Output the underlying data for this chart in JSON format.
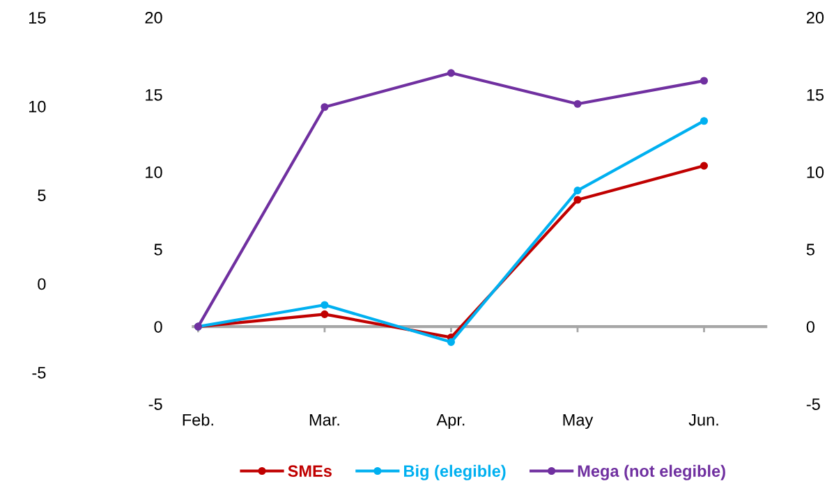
{
  "chart_data": {
    "type": "line",
    "categories": [
      "Feb.",
      "Mar.",
      "Apr.",
      "May",
      "Jun."
    ],
    "series": [
      {
        "name": "SMEs",
        "color": "#c00000",
        "values": [
          0,
          0.8,
          -0.7,
          8.2,
          10.4
        ]
      },
      {
        "name": "Big (elegible)",
        "color": "#00b0f0",
        "values": [
          0,
          1.4,
          -1.0,
          8.8,
          13.3
        ]
      },
      {
        "name": "Mega (not elegible)",
        "color": "#7030a0",
        "values": [
          0,
          14.2,
          16.4,
          14.4,
          15.9
        ]
      }
    ],
    "ylim": [
      -5,
      20
    ],
    "yticks": [
      -5,
      0,
      5,
      10,
      15,
      20
    ],
    "y2lim": [
      -5,
      20
    ],
    "y2ticks": [
      -5,
      0,
      5,
      10,
      15,
      20
    ],
    "y3lim": [
      -5,
      15
    ],
    "y3ticks": [
      -5,
      0,
      5,
      10,
      15
    ],
    "ref_lines": [
      {
        "axis": "y",
        "value": 0,
        "label": null,
        "color": "#a6a6a6"
      }
    ],
    "marker": "circle",
    "line_style": "solid",
    "grid": false,
    "legend": "bottom"
  }
}
